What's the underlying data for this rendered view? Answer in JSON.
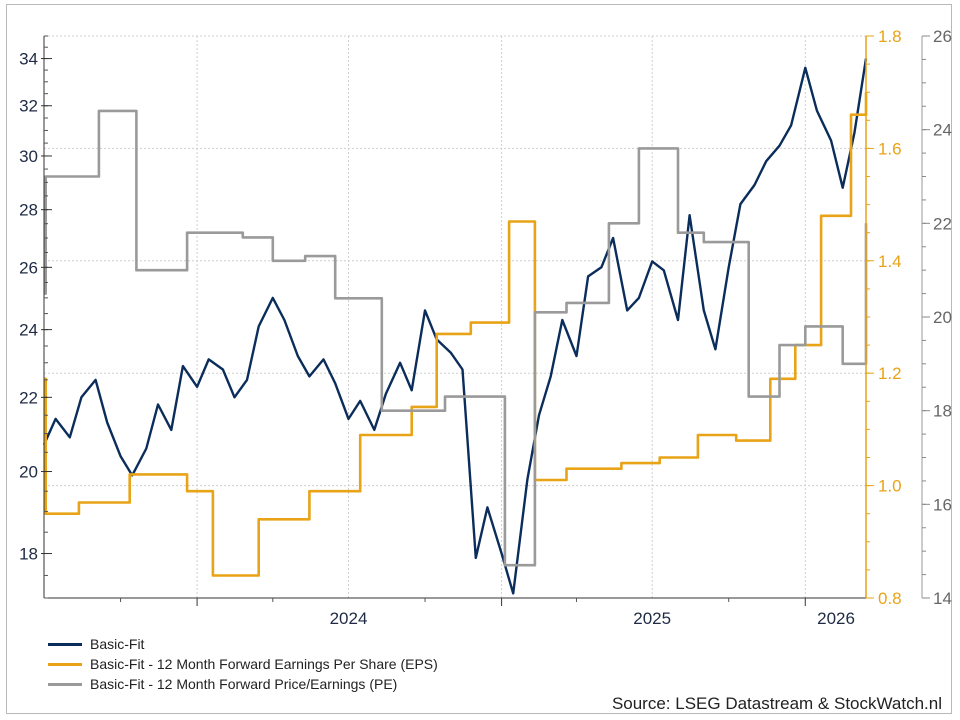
{
  "chart_data": {
    "type": "line",
    "x_ticks": [
      "2024",
      "2025",
      "2026"
    ],
    "x_range": [
      "2023-07-01",
      "2026-03-15"
    ],
    "grid": true,
    "legend_position": "bottom-left",
    "axes": {
      "left": {
        "ticks": [
          18,
          20,
          22,
          24,
          26,
          28,
          30,
          32,
          34
        ],
        "range": [
          17,
          35
        ],
        "scale": "log",
        "color": "#1f1f1f"
      },
      "right_inner": {
        "ticks": [
          0.8,
          1.0,
          1.2,
          1.4,
          1.6,
          1.8
        ],
        "range": [
          0.8,
          1.8
        ],
        "color": "#e8a317"
      },
      "right_outer": {
        "ticks": [
          14,
          16,
          18,
          20,
          22,
          24,
          26
        ],
        "range": [
          14,
          26
        ],
        "color": "#666666"
      }
    },
    "series": [
      {
        "name": "Basic-Fit",
        "axis": "left",
        "color": "#0b2d5b",
        "points": [
          [
            "2023-07-01",
            20.7
          ],
          [
            "2023-07-15",
            21.4
          ],
          [
            "2023-08-01",
            20.9
          ],
          [
            "2023-08-15",
            22.0
          ],
          [
            "2023-09-01",
            22.5
          ],
          [
            "2023-09-15",
            21.3
          ],
          [
            "2023-10-01",
            20.4
          ],
          [
            "2023-10-15",
            19.9
          ],
          [
            "2023-11-01",
            20.6
          ],
          [
            "2023-11-15",
            21.8
          ],
          [
            "2023-12-01",
            21.1
          ],
          [
            "2023-12-15",
            22.9
          ],
          [
            "2024-01-01",
            22.3
          ],
          [
            "2024-01-15",
            23.1
          ],
          [
            "2024-02-01",
            22.8
          ],
          [
            "2024-02-15",
            22.0
          ],
          [
            "2024-03-01",
            22.5
          ],
          [
            "2024-03-15",
            24.1
          ],
          [
            "2024-04-01",
            25.0
          ],
          [
            "2024-04-15",
            24.3
          ],
          [
            "2024-05-01",
            23.2
          ],
          [
            "2024-05-15",
            22.6
          ],
          [
            "2024-06-01",
            23.1
          ],
          [
            "2024-06-15",
            22.4
          ],
          [
            "2024-07-01",
            21.4
          ],
          [
            "2024-07-15",
            21.9
          ],
          [
            "2024-08-01",
            21.1
          ],
          [
            "2024-08-15",
            22.1
          ],
          [
            "2024-09-01",
            23.0
          ],
          [
            "2024-09-15",
            22.2
          ],
          [
            "2024-10-01",
            24.6
          ],
          [
            "2024-10-15",
            23.7
          ],
          [
            "2024-11-01",
            23.3
          ],
          [
            "2024-11-15",
            22.8
          ],
          [
            "2024-12-01",
            17.9
          ],
          [
            "2024-12-15",
            19.1
          ],
          [
            "2025-01-01",
            18.0
          ],
          [
            "2025-01-15",
            17.1
          ],
          [
            "2025-02-01",
            19.8
          ],
          [
            "2025-02-15",
            21.5
          ],
          [
            "2025-03-01",
            22.6
          ],
          [
            "2025-03-15",
            24.3
          ],
          [
            "2025-04-01",
            23.2
          ],
          [
            "2025-04-15",
            25.7
          ],
          [
            "2025-05-01",
            26.0
          ],
          [
            "2025-05-15",
            27.0
          ],
          [
            "2025-06-01",
            24.6
          ],
          [
            "2025-06-15",
            25.0
          ],
          [
            "2025-07-01",
            26.2
          ],
          [
            "2025-07-15",
            25.9
          ],
          [
            "2025-08-01",
            24.3
          ],
          [
            "2025-08-15",
            27.8
          ],
          [
            "2025-09-01",
            24.6
          ],
          [
            "2025-09-15",
            23.4
          ],
          [
            "2025-10-01",
            26.0
          ],
          [
            "2025-10-15",
            28.2
          ],
          [
            "2025-11-01",
            28.9
          ],
          [
            "2025-11-15",
            29.8
          ],
          [
            "2025-12-01",
            30.4
          ],
          [
            "2025-12-15",
            31.2
          ],
          [
            "2026-01-01",
            33.6
          ],
          [
            "2026-01-15",
            31.8
          ],
          [
            "2026-02-01",
            30.6
          ],
          [
            "2026-02-15",
            28.8
          ],
          [
            "2026-03-01",
            30.9
          ],
          [
            "2026-03-15",
            34.0
          ]
        ]
      },
      {
        "name": "Basic-Fit - 12 Month Forward Earnings Per Share (EPS)",
        "axis": "right_inner",
        "color": "#e8a317",
        "points": [
          [
            "2023-07-01",
            1.19
          ],
          [
            "2023-07-03",
            0.95
          ],
          [
            "2023-08-12",
            0.97
          ],
          [
            "2023-10-12",
            1.02
          ],
          [
            "2023-12-20",
            0.99
          ],
          [
            "2024-01-20",
            0.84
          ],
          [
            "2024-03-15",
            0.94
          ],
          [
            "2024-05-15",
            0.99
          ],
          [
            "2024-07-15",
            1.09
          ],
          [
            "2024-09-15",
            1.14
          ],
          [
            "2024-10-15",
            1.27
          ],
          [
            "2024-11-25",
            1.29
          ],
          [
            "2025-01-10",
            1.47
          ],
          [
            "2025-02-10",
            1.01
          ],
          [
            "2025-03-20",
            1.03
          ],
          [
            "2025-05-25",
            1.04
          ],
          [
            "2025-07-10",
            1.05
          ],
          [
            "2025-08-25",
            1.09
          ],
          [
            "2025-10-10",
            1.08
          ],
          [
            "2025-11-20",
            1.19
          ],
          [
            "2025-12-20",
            1.25
          ],
          [
            "2026-01-20",
            1.48
          ],
          [
            "2026-02-25",
            1.66
          ],
          [
            "2026-03-15",
            1.7
          ]
        ]
      },
      {
        "name": "Basic-Fit - 12 Month Forward Price/Earnings (PE)",
        "axis": "right_outer",
        "color": "#9a9a9a",
        "points": [
          [
            "2023-07-01",
            20.5
          ],
          [
            "2023-07-03",
            23.0
          ],
          [
            "2023-09-05",
            24.4
          ],
          [
            "2023-10-20",
            21.0
          ],
          [
            "2023-12-20",
            21.8
          ],
          [
            "2024-02-25",
            21.7
          ],
          [
            "2024-04-01",
            21.2
          ],
          [
            "2024-05-10",
            21.3
          ],
          [
            "2024-06-15",
            20.4
          ],
          [
            "2024-08-10",
            18.0
          ],
          [
            "2024-10-25",
            18.3
          ],
          [
            "2025-01-05",
            14.7
          ],
          [
            "2025-02-10",
            20.1
          ],
          [
            "2025-03-20",
            20.3
          ],
          [
            "2025-05-10",
            22.0
          ],
          [
            "2025-06-15",
            23.6
          ],
          [
            "2025-08-01",
            21.8
          ],
          [
            "2025-09-01",
            21.6
          ],
          [
            "2025-10-25",
            18.3
          ],
          [
            "2025-12-01",
            19.4
          ],
          [
            "2026-01-01",
            19.8
          ],
          [
            "2026-02-15",
            19.0
          ],
          [
            "2026-03-15",
            22.0
          ]
        ]
      }
    ]
  },
  "source": "Source: LSEG Datastream & StockWatch.nl"
}
